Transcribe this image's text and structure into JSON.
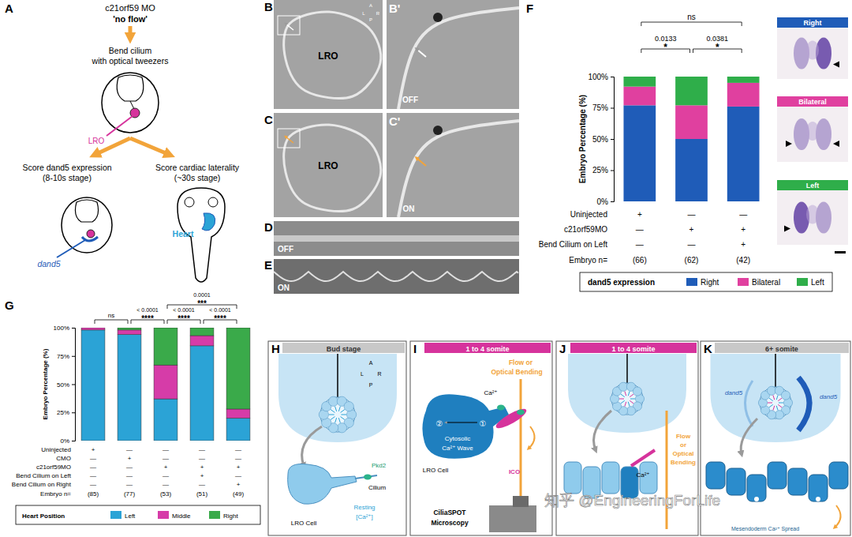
{
  "chart_data": [
    {
      "type": "bar",
      "stacked": true,
      "categories": [
        null,
        null,
        null
      ],
      "tick_labels": "y",
      "grid": false,
      "ylabel": "Embryo Percentage (%)",
      "ylim": [
        0,
        100
      ],
      "yticks": [
        {
          "value": 0,
          "label": "0%"
        },
        {
          "value": 25,
          "label": "25%"
        },
        {
          "value": 50,
          "label": "50%"
        },
        {
          "value": 75,
          "label": "75%"
        },
        {
          "value": 100,
          "label": "100%"
        }
      ],
      "series": [
        {
          "name": "Right",
          "color": "#1f5cb8",
          "values": [
            77,
            50,
            76
          ]
        },
        {
          "name": "Bilateral",
          "color": "#e0409f",
          "values": [
            15,
            27,
            19
          ]
        },
        {
          "name": "Left",
          "color": "#2fae4a",
          "values": [
            8,
            23,
            5
          ]
        }
      ],
      "legend": "bottom",
      "legend_title": "dand5 expression",
      "annotations": [
        {
          "from": 0,
          "to": 2,
          "label": "ns"
        },
        {
          "from": 0,
          "to": 1,
          "label": "0.0133",
          "stars": "*"
        },
        {
          "from": 1,
          "to": 2,
          "label": "0.0381",
          "stars": "*"
        }
      ],
      "condition_table": {
        "rows": [
          {
            "label": "Uninjected",
            "cells": [
              "+",
              "—",
              "—"
            ]
          },
          {
            "label": "c21orf59MO",
            "cells": [
              "—",
              "+",
              "+"
            ]
          },
          {
            "label": "Bend Cilium on Left",
            "cells": [
              "—",
              "—",
              "+"
            ]
          }
        ],
        "n_label": "Embryo n=",
        "n_values": [
          "(66)",
          "(62)",
          "(42)"
        ]
      }
    },
    {
      "type": "bar",
      "stacked": true,
      "categories": [
        null,
        null,
        null,
        null,
        null
      ],
      "tick_labels": "y",
      "grid": false,
      "ylabel": "Embryo Percentage (%)",
      "ylim": [
        0,
        100
      ],
      "yticks": [
        {
          "value": 0,
          "label": "0%"
        },
        {
          "value": 25,
          "label": "25%"
        },
        {
          "value": 50,
          "label": "50%"
        },
        {
          "value": 75,
          "label": "75%"
        },
        {
          "value": 100,
          "label": "100%"
        }
      ],
      "series": [
        {
          "name": "Left",
          "color": "#2ba3d6",
          "values": [
            98,
            94,
            37,
            84,
            20
          ]
        },
        {
          "name": "Middle",
          "color": "#d63ca8",
          "values": [
            2,
            4,
            30,
            9,
            8
          ]
        },
        {
          "name": "Right",
          "color": "#3aaa4a",
          "values": [
            0,
            2,
            33,
            7,
            72
          ]
        }
      ],
      "legend": "bottom",
      "legend_title": "Heart Position",
      "annotations": [
        {
          "from": 0,
          "to": 1,
          "label": "ns"
        },
        {
          "from": 1,
          "to": 2,
          "label": "< 0.0001",
          "stars": "****"
        },
        {
          "from": 2,
          "to": 4,
          "label": "0.0001",
          "stars": "***"
        },
        {
          "from": 2,
          "to": 3,
          "label": "< 0.0001",
          "stars": "****"
        },
        {
          "from": 3,
          "to": 4,
          "label": "< 0.0001",
          "stars": "****"
        }
      ],
      "condition_table": {
        "rows": [
          {
            "label": "Uninjected",
            "cells": [
              "+",
              "—",
              "—",
              "—",
              "—"
            ]
          },
          {
            "label": "CMO",
            "cells": [
              "—",
              "+",
              "—",
              "—",
              "—"
            ]
          },
          {
            "label": "c21orf59MO",
            "cells": [
              "—",
              "—",
              "+",
              "+",
              "+"
            ]
          },
          {
            "label": "Bend Cilium on Left",
            "cells": [
              "—",
              "—",
              "—",
              "+",
              "—"
            ]
          },
          {
            "label": "Bend Cilium on Right",
            "cells": [
              "—",
              "—",
              "—",
              "—",
              "+"
            ]
          }
        ],
        "n_label": "Embryo n=",
        "n_values": [
          "(85)",
          "(77)",
          "(53)",
          "(51)",
          "(49)"
        ]
      }
    }
  ],
  "panels": {
    "A": {
      "letter": "A",
      "title": "c21orf59 MO",
      "subtitle": "'no flow'",
      "step": [
        "Bend cilium",
        "with optical tweezers"
      ],
      "lro": "LRO",
      "left": [
        "Score dand5 expression",
        "(8-10s stage)"
      ],
      "right": [
        "Score cardiac laterality",
        "(~30s stage)"
      ],
      "gene": "dand5",
      "heart": "Heart"
    },
    "B": {
      "letter": "B",
      "label": "LRO",
      "compass": [
        "A",
        "P",
        "L",
        "R"
      ]
    },
    "B2": {
      "letter": "B'",
      "state": "OFF"
    },
    "C": {
      "letter": "C",
      "label": "LRO"
    },
    "C2": {
      "letter": "C'",
      "state": "ON"
    },
    "D": {
      "letter": "D",
      "state": "OFF"
    },
    "E": {
      "letter": "E",
      "state": "ON"
    },
    "F": {
      "letter": "F",
      "images": [
        "Right",
        "Bilateral",
        "Left"
      ]
    },
    "G": {
      "letter": "G"
    },
    "H": {
      "letter": "H",
      "header": "Bud stage",
      "compass": [
        "A",
        "P",
        "L",
        "R"
      ],
      "pkd2": "Pkd2",
      "cilium": "Cilium",
      "resting": [
        "Resting",
        "[Ca²⁺]"
      ],
      "cell": "LRO Cell"
    },
    "I": {
      "letter": "I",
      "header": "1 to 4 somite",
      "stimulus": [
        "Flow or",
        "Optical Bending"
      ],
      "ca": "Ca²⁺",
      "wave": [
        "Cytosolic",
        "Ca²⁺ Wave"
      ],
      "steps": [
        "①",
        "②"
      ],
      "cell": "LRO Cell",
      "ico": "ICO",
      "scope": [
        "CiliaSPOT",
        "Microscopy"
      ]
    },
    "J": {
      "letter": "J",
      "header": "1 to 4 somite",
      "stimulus": [
        "Flow",
        "or",
        "Optical",
        "Bending"
      ],
      "ca": "Ca²⁺"
    },
    "K": {
      "letter": "K",
      "header": "6+ somite",
      "gene": [
        "dand5",
        "dand5"
      ],
      "spread": "Mesendoderm Ca²⁺ Spread"
    },
    "watermark": "知乎 @EngineeringForLife"
  }
}
